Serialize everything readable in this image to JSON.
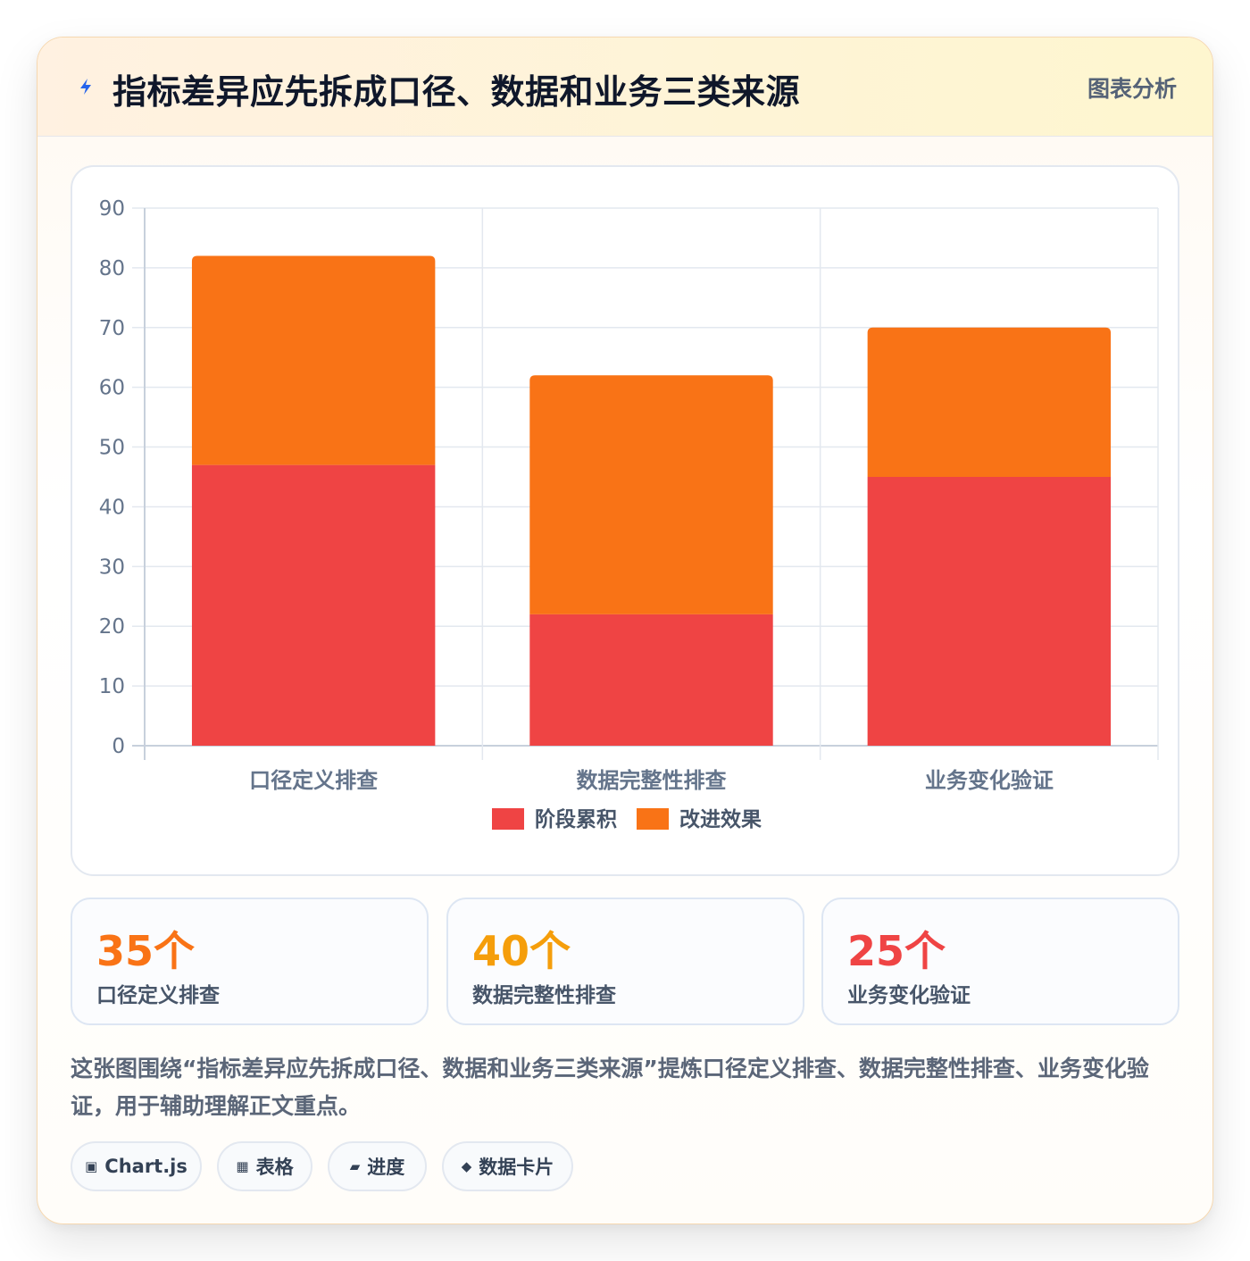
{
  "header": {
    "title": "指标差异应先拆成口径、数据和业务三类来源",
    "tag": "图表分析"
  },
  "colors": {
    "accent_orange": "#f97316",
    "accent_amber": "#f59e0b",
    "accent_red": "#ef4444",
    "bolt": "#2563eb"
  },
  "chart_data": {
    "type": "bar",
    "stacked": true,
    "title": "",
    "xlabel": "",
    "ylabel": "",
    "ylim": [
      0,
      90
    ],
    "yticks": [
      0,
      10,
      20,
      30,
      40,
      50,
      60,
      70,
      80,
      90
    ],
    "grid": true,
    "legend_position": "bottom",
    "categories": [
      "口径定义排查",
      "数据完整性排查",
      "业务变化验证"
    ],
    "series": [
      {
        "name": "阶段累积",
        "values": [
          47,
          22,
          45
        ],
        "color": "#ef4444"
      },
      {
        "name": "改进效果",
        "values": [
          35,
          40,
          25
        ],
        "color": "#f97316"
      }
    ]
  },
  "stats": [
    {
      "value": "35个",
      "label": "口径定义排查",
      "color": "#f97316"
    },
    {
      "value": "40个",
      "label": "数据完整性排查",
      "color": "#f59e0b"
    },
    {
      "value": "25个",
      "label": "业务变化验证",
      "color": "#ef4444"
    }
  ],
  "description": "这张图围绕“指标差异应先拆成口径、数据和业务三类来源”提炼口径定义排查、数据完整性排查、业务变化验证，用于辅助理解正文重点。",
  "chips": [
    {
      "icon": "▣",
      "label": "Chart.js",
      "icon_name": "square-icon"
    },
    {
      "icon": "▦",
      "label": "表格",
      "icon_name": "grid-icon"
    },
    {
      "icon": "▰",
      "label": "进度",
      "icon_name": "progress-icon"
    },
    {
      "icon": "◆",
      "label": "数据卡片",
      "icon_name": "diamond-icon"
    }
  ]
}
